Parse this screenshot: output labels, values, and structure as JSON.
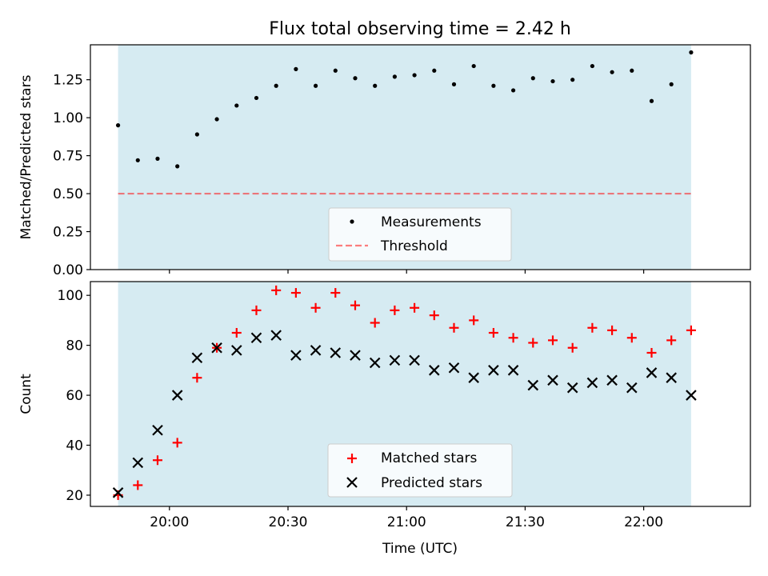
{
  "figure": {
    "title": "Flux total observing time = 2.42 h",
    "xlabel": "Time (UTC)"
  },
  "colors": {
    "span": "#add8e6",
    "span_alpha": 0.5,
    "measurement": "#000000",
    "threshold": "#ff0000",
    "threshold_alpha": 0.5,
    "matched": "#ff0000",
    "predicted": "#000000"
  },
  "chart_data": [
    {
      "type": "scatter",
      "ylabel": "Matched/Predicted stars",
      "ylim": [
        0,
        1.48
      ],
      "yticks": [
        0.0,
        0.25,
        0.5,
        0.75,
        1.0,
        1.25
      ],
      "ytick_labels": [
        "0.00",
        "0.25",
        "0.50",
        "0.75",
        "1.00",
        "1.25"
      ],
      "xlim": [
        "19:40",
        "22:27"
      ],
      "shaded_span": [
        "19:47",
        "22:12"
      ],
      "grid": false,
      "legend_position": "lower-center",
      "x": [
        "19:47",
        "19:52",
        "19:57",
        "20:02",
        "20:07",
        "20:12",
        "20:17",
        "20:22",
        "20:27",
        "20:32",
        "20:37",
        "20:42",
        "20:47",
        "20:52",
        "20:57",
        "21:02",
        "21:07",
        "21:12",
        "21:17",
        "21:22",
        "21:27",
        "21:32",
        "21:37",
        "21:42",
        "21:47",
        "21:52",
        "21:57",
        "22:02",
        "22:07",
        "22:12"
      ],
      "series": [
        {
          "name": "Measurements",
          "marker": "dot",
          "values": [
            0.95,
            0.72,
            0.73,
            0.68,
            0.89,
            0.99,
            1.08,
            1.13,
            1.21,
            1.32,
            1.21,
            1.31,
            1.26,
            1.21,
            1.27,
            1.28,
            1.31,
            1.22,
            1.34,
            1.21,
            1.18,
            1.26,
            1.24,
            1.25,
            1.34,
            1.3,
            1.31,
            1.11,
            1.22,
            1.43
          ]
        },
        {
          "name": "Threshold",
          "style": "dashed-line",
          "value": 0.5
        }
      ]
    },
    {
      "type": "scatter",
      "ylabel": "Count",
      "ylim": [
        15.5,
        105.5
      ],
      "yticks": [
        20,
        40,
        60,
        80,
        100
      ],
      "ytick_labels": [
        "20",
        "40",
        "60",
        "80",
        "100"
      ],
      "xlim": [
        "19:40",
        "22:27"
      ],
      "shaded_span": [
        "19:47",
        "22:12"
      ],
      "xticks": [
        "20:00",
        "20:30",
        "21:00",
        "21:30",
        "22:00"
      ],
      "grid": false,
      "legend_position": "lower-center",
      "x": [
        "19:47",
        "19:52",
        "19:57",
        "20:02",
        "20:07",
        "20:12",
        "20:17",
        "20:22",
        "20:27",
        "20:32",
        "20:37",
        "20:42",
        "20:47",
        "20:52",
        "20:57",
        "21:02",
        "21:07",
        "21:12",
        "21:17",
        "21:22",
        "21:27",
        "21:32",
        "21:37",
        "21:42",
        "21:47",
        "21:52",
        "21:57",
        "22:02",
        "22:07",
        "22:12"
      ],
      "series": [
        {
          "name": "Matched stars",
          "marker": "plus",
          "values": [
            20,
            24,
            34,
            41,
            67,
            79,
            85,
            94,
            102,
            101,
            95,
            101,
            96,
            89,
            94,
            95,
            92,
            87,
            90,
            85,
            83,
            81,
            82,
            79,
            87,
            86,
            83,
            77,
            82,
            86
          ]
        },
        {
          "name": "Predicted stars",
          "marker": "x",
          "values": [
            21,
            33,
            46,
            60,
            75,
            79,
            78,
            83,
            84,
            76,
            78,
            77,
            76,
            73,
            74,
            74,
            70,
            71,
            67,
            70,
            70,
            64,
            66,
            63,
            65,
            66,
            63,
            69,
            67,
            60
          ]
        }
      ]
    }
  ]
}
